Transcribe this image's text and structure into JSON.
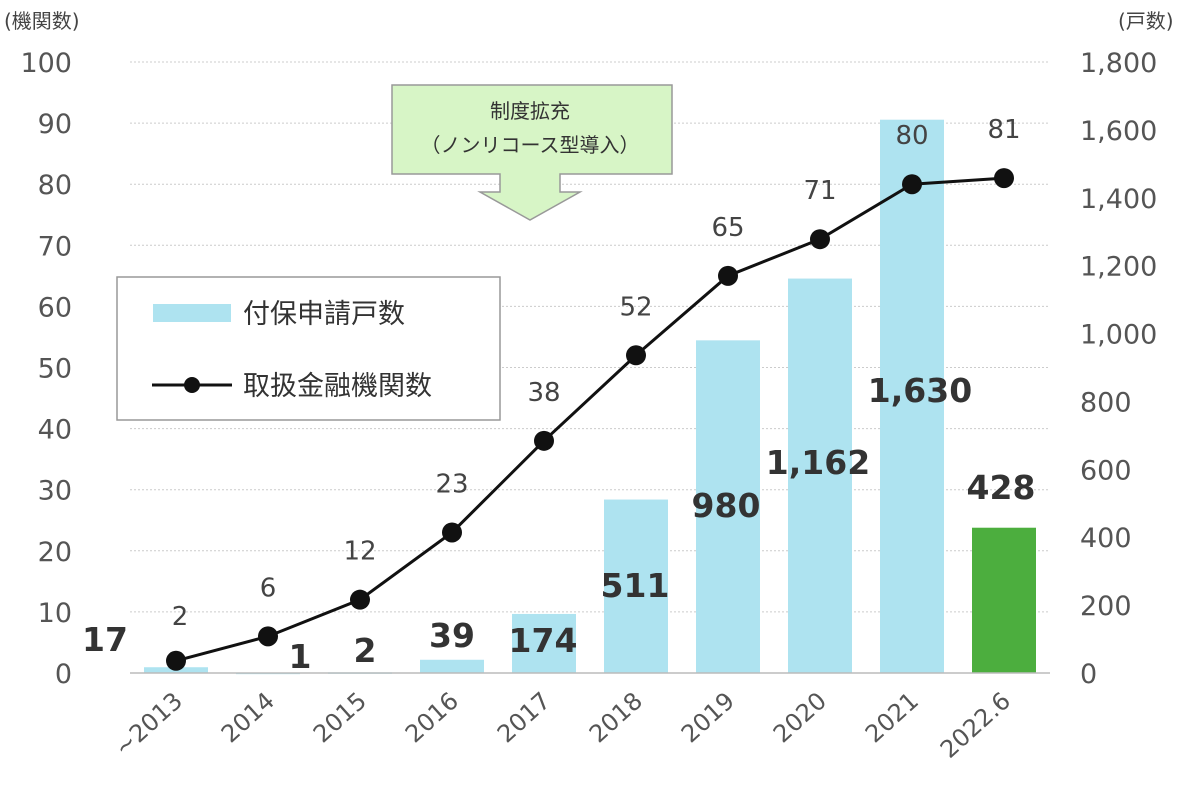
{
  "chart_data": {
    "type": "bar+line",
    "title": "",
    "categories": [
      "~2013",
      "2014",
      "2015",
      "2016",
      "2017",
      "2018",
      "2019",
      "2020",
      "2021",
      "2022.6"
    ],
    "left_axis": {
      "label": "(機関数)",
      "range": [
        0,
        100
      ],
      "ticks": [
        0,
        10,
        20,
        30,
        40,
        50,
        60,
        70,
        80,
        90,
        100
      ]
    },
    "right_axis": {
      "label": "(戸数)",
      "range": [
        0,
        1800
      ],
      "ticks": [
        "0",
        "200",
        "400",
        "600",
        "800",
        "1,000",
        "1,200",
        "1,400",
        "1,600",
        "1,800"
      ],
      "tick_values": [
        0,
        200,
        400,
        600,
        800,
        1000,
        1200,
        1400,
        1600,
        1800
      ]
    },
    "series": [
      {
        "name": "付保申請戸数",
        "type": "bar",
        "axis": "right",
        "color": "#aee3f0",
        "highlight_color": "#4cae3e",
        "values": [
          17,
          1,
          2,
          39,
          174,
          511,
          980,
          1162,
          1630,
          428
        ],
        "labels": [
          "17",
          "1",
          "2",
          "39",
          "174",
          "511",
          "980",
          "1,162",
          "1,630",
          "428"
        ]
      },
      {
        "name": "取扱金融機関数",
        "type": "line",
        "axis": "left",
        "color": "#111111",
        "values": [
          2,
          6,
          12,
          23,
          38,
          52,
          65,
          71,
          80,
          81
        ],
        "labels": [
          "2",
          "6",
          "12",
          "23",
          "38",
          "52",
          "65",
          "71",
          "80",
          "81"
        ]
      }
    ],
    "legend": {
      "placement": "left-middle"
    },
    "annotation": {
      "line1": "制度拡充",
      "line2": "（ノンリコース型導入）"
    },
    "grid": true
  }
}
